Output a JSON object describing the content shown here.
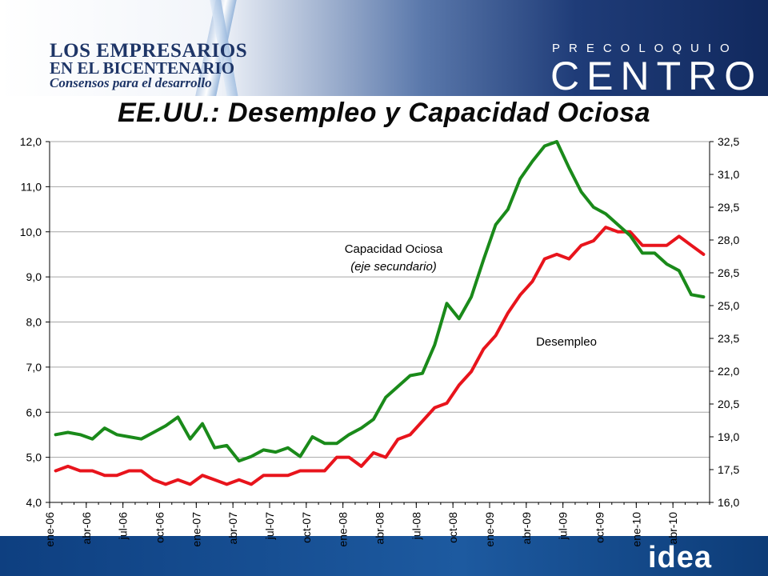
{
  "header": {
    "logo_line1": "LOS EMPRESARIOS",
    "logo_line2": "EN EL BICENTENARIO",
    "logo_line3": "Consensos para el desarrollo",
    "brand_top": "PRECOLOQUIO",
    "brand_main": "CENTRO"
  },
  "footer": {
    "logo": "idea"
  },
  "colors": {
    "desempleo": "#e8141c",
    "capacidad": "#1a8a1a",
    "banner_dark": "#11295e"
  },
  "chart_data": {
    "type": "line",
    "title": "EE.UU.: Desempleo y Capacidad Ociosa",
    "x": [
      "ene-06",
      "feb-06",
      "mar-06",
      "abr-06",
      "may-06",
      "jun-06",
      "jul-06",
      "ago-06",
      "sep-06",
      "oct-06",
      "nov-06",
      "dic-06",
      "ene-07",
      "feb-07",
      "mar-07",
      "abr-07",
      "may-07",
      "jun-07",
      "jul-07",
      "ago-07",
      "sep-07",
      "oct-07",
      "nov-07",
      "dic-07",
      "ene-08",
      "feb-08",
      "mar-08",
      "abr-08",
      "may-08",
      "jun-08",
      "jul-08",
      "ago-08",
      "sep-08",
      "oct-08",
      "nov-08",
      "dic-08",
      "ene-09",
      "feb-09",
      "mar-09",
      "abr-09",
      "may-09",
      "jun-09",
      "jul-09",
      "ago-09",
      "sep-09",
      "oct-09",
      "nov-09",
      "dic-09",
      "ene-10",
      "feb-10",
      "mar-10",
      "abr-10",
      "may-10",
      "jun-10"
    ],
    "xtick_labels": [
      "ene-06",
      "abr-06",
      "jul-06",
      "oct-06",
      "ene-07",
      "abr-07",
      "jul-07",
      "oct-07",
      "ene-08",
      "abr-08",
      "jul-08",
      "oct-08",
      "ene-09",
      "abr-09",
      "jul-09",
      "oct-09",
      "ene-10",
      "abr-10"
    ],
    "y_left": {
      "min": 4.0,
      "max": 12.0,
      "ticks": [
        "4,0",
        "5,0",
        "6,0",
        "7,0",
        "8,0",
        "9,0",
        "10,0",
        "11,0",
        "12,0"
      ]
    },
    "y_right": {
      "min": 16.0,
      "max": 32.5,
      "ticks": [
        "16,0",
        "17,5",
        "19,0",
        "20,5",
        "22,0",
        "23,5",
        "25,0",
        "26,5",
        "28,0",
        "29,5",
        "31,0",
        "32,5"
      ]
    },
    "grid": true,
    "series": [
      {
        "name": "Desempleo",
        "axis": "left",
        "color": "#e8141c",
        "values": [
          4.7,
          4.8,
          4.7,
          4.7,
          4.6,
          4.6,
          4.7,
          4.7,
          4.5,
          4.4,
          4.5,
          4.4,
          4.6,
          4.5,
          4.4,
          4.5,
          4.4,
          4.6,
          4.6,
          4.6,
          4.7,
          4.7,
          4.7,
          5.0,
          5.0,
          4.8,
          5.1,
          5.0,
          5.4,
          5.5,
          5.8,
          6.1,
          6.2,
          6.6,
          6.9,
          7.4,
          7.7,
          8.2,
          8.6,
          8.9,
          9.4,
          9.5,
          9.4,
          9.7,
          9.8,
          10.1,
          10.0,
          10.0,
          9.7,
          9.7,
          9.7,
          9.9,
          9.7,
          9.5
        ]
      },
      {
        "name": "Capacidad Ociosa",
        "axis": "right",
        "color": "#1a8a1a",
        "values": [
          19.1,
          19.2,
          19.1,
          18.9,
          19.4,
          19.1,
          19.0,
          18.9,
          19.2,
          19.5,
          19.9,
          18.9,
          19.6,
          18.5,
          18.6,
          17.9,
          18.1,
          18.4,
          18.3,
          18.5,
          18.1,
          19.0,
          18.7,
          18.7,
          19.1,
          19.4,
          19.8,
          20.8,
          21.3,
          21.8,
          21.9,
          23.2,
          25.1,
          24.4,
          25.4,
          27.1,
          28.7,
          29.4,
          30.8,
          31.6,
          32.3,
          32.5,
          31.3,
          30.2,
          29.5,
          29.2,
          28.7,
          28.2,
          27.4,
          27.4,
          26.9,
          26.6,
          25.5,
          25.4
        ]
      }
    ],
    "annotations": [
      {
        "text": "Capacidad Ociosa",
        "series": "Capacidad Ociosa"
      },
      {
        "text": "(eje secundario)",
        "series": "Capacidad Ociosa"
      },
      {
        "text": "Desempleo",
        "series": "Desempleo"
      }
    ]
  }
}
